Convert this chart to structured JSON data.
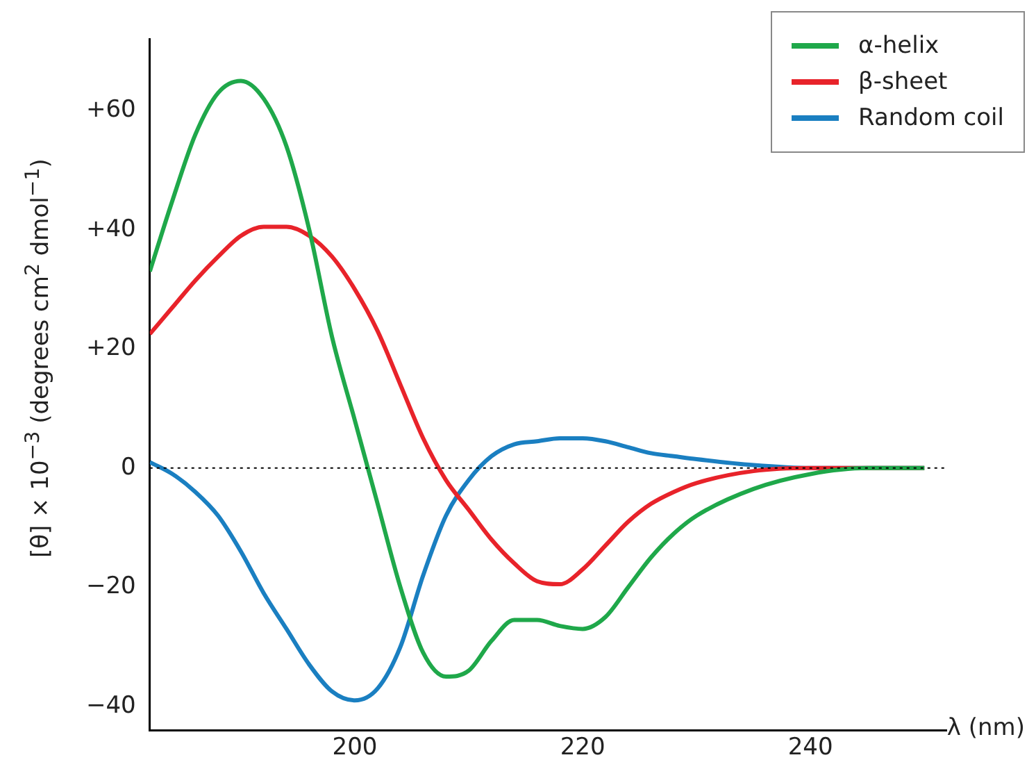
{
  "chart_data": {
    "type": "line",
    "xlabel": "λ (nm)",
    "ylabel": "[θ] × 10$^{−3}$ (degrees cm$^{2}$ dmol$^{−1}$)",
    "x": [
      182,
      184,
      186,
      188,
      190,
      192,
      194,
      196,
      198,
      200,
      202,
      204,
      206,
      208,
      210,
      212,
      214,
      216,
      218,
      220,
      222,
      224,
      226,
      228,
      230,
      235,
      240,
      245,
      250
    ],
    "series": [
      {
        "name": "α-helix",
        "color": "#1fa84a",
        "values": [
          33,
          45,
          56,
          63,
          65,
          62,
          54,
          40,
          22,
          8,
          -6,
          -20,
          -31,
          -35,
          -34,
          -29,
          -25.5,
          -25.5,
          -26.5,
          -27,
          -25,
          -20,
          -15,
          -11,
          -8,
          -3.5,
          -1,
          0,
          0
        ]
      },
      {
        "name": "β-sheet",
        "color": "#e8232a",
        "values": [
          22.5,
          27,
          31.5,
          35.5,
          39,
          40.5,
          40.5,
          39,
          35.5,
          30,
          23,
          14,
          5,
          -2,
          -7,
          -12,
          -16,
          -19,
          -19.5,
          -17,
          -13,
          -9,
          -6,
          -4,
          -2.5,
          -0.5,
          0,
          0,
          0
        ]
      },
      {
        "name": "Random coil",
        "color": "#1a7fc1",
        "values": [
          1,
          -1,
          -4,
          -8,
          -14,
          -21,
          -27,
          -33,
          -37.5,
          -39,
          -37,
          -30,
          -18,
          -8,
          -2,
          2,
          4,
          4.5,
          5,
          5,
          4.5,
          3.5,
          2.5,
          2,
          1.5,
          0.5,
          0,
          0,
          0
        ]
      }
    ],
    "xlim": [
      182,
      252
    ],
    "ylim": [
      -44,
      72
    ],
    "xticks": [
      200,
      220,
      240
    ],
    "yticks": [
      {
        "value": 60,
        "label": "+60"
      },
      {
        "value": 40,
        "label": "+40"
      },
      {
        "value": 20,
        "label": "+20"
      },
      0,
      {
        "value": -20,
        "label": "−20"
      },
      {
        "value": -40,
        "label": "−40"
      }
    ],
    "ref_lines": [
      {
        "axis": "y",
        "value": 0,
        "color": "#000000",
        "line_style": "dotted"
      }
    ],
    "grid": false,
    "legend": "top right",
    "marker": "none",
    "line_style": "solid"
  }
}
